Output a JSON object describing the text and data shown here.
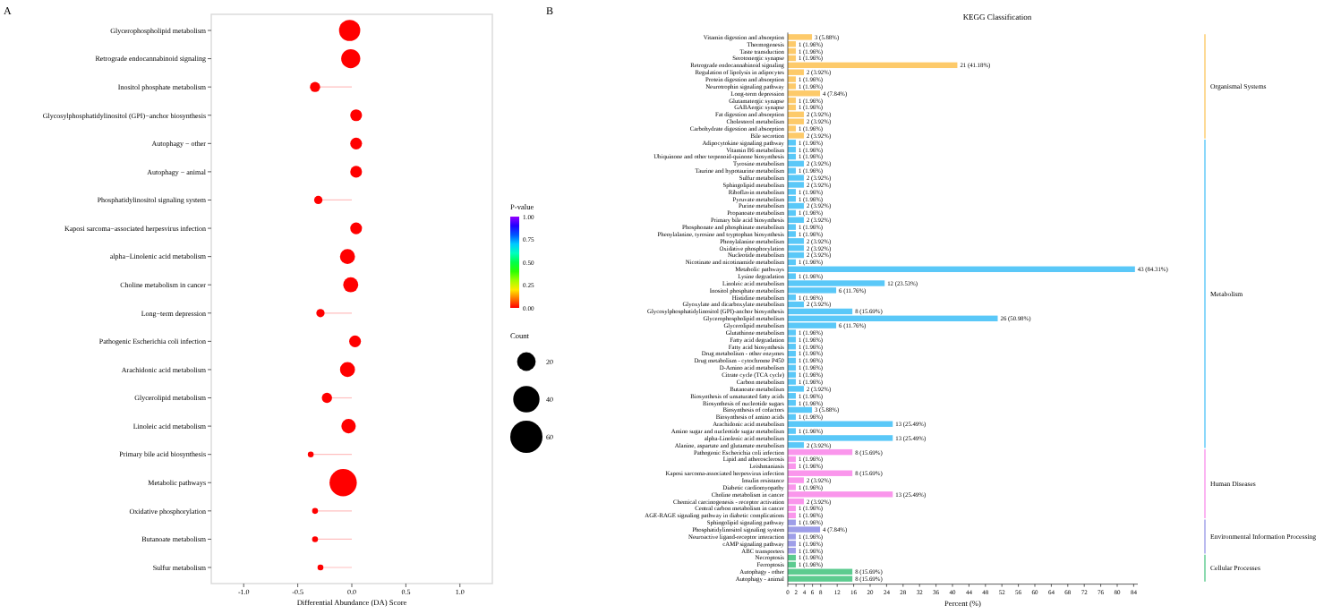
{
  "chart_data": [
    {
      "type": "bubble",
      "orientation": "horizontal",
      "xlabel": "Differential Abundance (DA) Score",
      "annotations": [
        "A"
      ],
      "legend_title": "Count",
      "clabel": "P-value",
      "categories": [
        "Glycerophospholipid metabolism",
        "Retrograde endocannabinoid signaling",
        "Inositol phosphate metabolism",
        "Glycosylphosphatidylinositol (GPI)−anchor biosynthesis",
        "Autophagy − other",
        "Autophagy − animal",
        "Phosphatidylinositol signaling system",
        "Kaposi sarcoma−associated herpesvirus infection",
        "alpha−Linolenic acid metabolism",
        "Choline metabolism in cancer",
        "Long−term depression",
        "Pathogenic Escherichia coli infection",
        "Arachidonic acid metabolism",
        "Glycerolipid metabolism",
        "Linoleic acid metabolism",
        "Primary bile acid biosynthesis",
        "Metabolic pathways",
        "Oxidative phosphorylation",
        "Butanoate metabolism",
        "Sulfur metabolism"
      ],
      "values": [
        -0.02,
        -0.01,
        -0.34,
        0.04,
        0.04,
        0.04,
        -0.31,
        0.04,
        -0.04,
        -0.01,
        -0.29,
        0.03,
        -0.04,
        -0.23,
        -0.03,
        -0.38,
        -0.08,
        -0.34,
        -0.34,
        -0.29
      ],
      "sizes": [
        26,
        21,
        6,
        8,
        8,
        8,
        4,
        8,
        13,
        13,
        4,
        8,
        13,
        6,
        12,
        2,
        43,
        2,
        2,
        2
      ],
      "size_legend": [
        20,
        40,
        60
      ],
      "cvalues": [
        0,
        0,
        0,
        0,
        0,
        0,
        0,
        0,
        0,
        0,
        0,
        0,
        0,
        0,
        0,
        0,
        0,
        0,
        0,
        0
      ],
      "clim": [
        0,
        1
      ],
      "cticks": [
        {
          "value": 0,
          "label": "0.00"
        },
        {
          "value": 0.25,
          "label": "0.25"
        },
        {
          "value": 0.5,
          "label": "0.50"
        },
        {
          "value": 0.75,
          "label": "0.75"
        },
        {
          "value": 1,
          "label": "1.00"
        }
      ],
      "xlim": [
        -1.3,
        1.3
      ],
      "xticks": [
        {
          "value": -1,
          "label": "-1.0"
        },
        {
          "value": -0.5,
          "label": "-0.5"
        },
        {
          "value": 0,
          "label": "0.0"
        },
        {
          "value": 0.5,
          "label": "0.5"
        },
        {
          "value": 1,
          "label": "1.0"
        }
      ]
    },
    {
      "type": "bar",
      "orientation": "horizontal",
      "title": "KEGG Classification",
      "xlabel": "Percent (%)",
      "annotations": [
        "B",
        "Organismal Systems",
        "Metabolism",
        "Human Diseases",
        "Environmental Information Processing",
        "Cellular Processes"
      ],
      "categories": [
        "Vitamin digestion and absorption",
        "Thermogenesis",
        "Taste transduction",
        "Serotonergic synapse",
        "Retrograde endocannabinoid signaling",
        "Regulation of lipolysis in adipocytes",
        "Protein digestion and absorption",
        "Neurotrophin signaling pathway",
        "Long-term depression",
        "Glutamatergic synapse",
        "GABAergic synapse",
        "Fat digestion and absorption",
        "Cholesterol metabolism",
        "Carbohydrate digestion and absorption",
        "Bile secretion",
        "Adipocytokine signaling pathway",
        "Vitamin B6 metabolism",
        "Ubiquinone and other terpenoid-quinone biosynthesis",
        "Tyrosine metabolism",
        "Taurine and hypotaurine metabolism",
        "Sulfur metabolism",
        "Sphingolipid metabolism",
        "Riboflavin metabolism",
        "Pyruvate metabolism",
        "Purine metabolism",
        "Propanoate metabolism",
        "Primary bile acid biosynthesis",
        "Phosphonate and phosphinate metabolism",
        "Phenylalanine, tyrosine and tryptophan biosynthesis",
        "Phenylalanine metabolism",
        "Oxidative phosphorylation",
        "Nucleotide metabolism",
        "Nicotinate and nicotinamide metabolism",
        "Metabolic pathways",
        "Lysine degradation",
        "Linoleic acid metabolism",
        "Inositol phosphate metabolism",
        "Histidine metabolism",
        "Glyoxylate and dicarboxylate metabolism",
        "Glycosylphosphatidylinositol (GPI)-anchor biosynthesis",
        "Glycerophospholipid metabolism",
        "Glycerolipid metabolism",
        "Glutathione metabolism",
        "Fatty acid degradation",
        "Fatty acid biosynthesis",
        "Drug metabolism - other enzymes",
        "Drug metabolism - cytochrome P450",
        "D-Amino acid metabolism",
        "Citrate cycle (TCA cycle)",
        "Carbon metabolism",
        "Butanoate metabolism",
        "Biosynthesis of unsaturated fatty acids",
        "Biosynthesis of nucleotide sugars",
        "Biosynthesis of cofactors",
        "Biosynthesis of amino acids",
        "Arachidonic acid metabolism",
        "Amino sugar and nucleotide sugar metabolism",
        "alpha-Linolenic acid metabolism",
        "Alanine, aspartate and glutamate metabolism",
        "Pathogenic Escherichia coli infection",
        "Lipid and atherosclerosis",
        "Leishmaniasis",
        "Kaposi sarcoma-associated herpesvirus infection",
        "Insulin resistance",
        "Diabetic cardiomyopathy",
        "Choline metabolism in cancer",
        "Chemical carcinogenesis - receptor activation",
        "Central carbon metabolism in cancer",
        "AGE-RAGE signaling pathway in diabetic complications",
        "Sphingolipid signaling pathway",
        "Phosphatidylinositol signaling system",
        "Neuroactive ligand-receptor interaction",
        "cAMP signaling pathway",
        "ABC transporters",
        "Necroptosis",
        "Ferroptosis",
        "Autophagy - other",
        "Autophagy - animal"
      ],
      "values": [
        5.88,
        1.96,
        1.96,
        1.96,
        41.18,
        3.92,
        1.96,
        1.96,
        7.84,
        1.96,
        1.96,
        3.92,
        3.92,
        1.96,
        3.92,
        1.96,
        1.96,
        1.96,
        3.92,
        1.96,
        3.92,
        3.92,
        1.96,
        1.96,
        3.92,
        1.96,
        3.92,
        1.96,
        1.96,
        3.92,
        3.92,
        3.92,
        1.96,
        84.31,
        1.96,
        23.53,
        11.76,
        1.96,
        3.92,
        15.69,
        50.98,
        11.76,
        1.96,
        1.96,
        1.96,
        1.96,
        1.96,
        1.96,
        1.96,
        1.96,
        3.92,
        1.96,
        1.96,
        5.88,
        1.96,
        25.49,
        1.96,
        25.49,
        3.92,
        15.69,
        1.96,
        1.96,
        15.69,
        3.92,
        1.96,
        25.49,
        3.92,
        1.96,
        1.96,
        1.96,
        7.84,
        1.96,
        1.96,
        1.96,
        1.96,
        1.96,
        15.69,
        15.69
      ],
      "value_labels": [
        "3 (5.88%)",
        "1 (1.96%)",
        "1 (1.96%)",
        "1 (1.96%)",
        "21 (41.18%)",
        "2 (3.92%)",
        "1 (1.96%)",
        "1 (1.96%)",
        "4 (7.84%)",
        "1 (1.96%)",
        "1 (1.96%)",
        "2 (3.92%)",
        "2 (3.92%)",
        "1 (1.96%)",
        "2 (3.92%)",
        "1 (1.96%)",
        "1 (1.96%)",
        "1 (1.96%)",
        "2 (3.92%)",
        "1 (1.96%)",
        "2 (3.92%)",
        "2 (3.92%)",
        "1 (1.96%)",
        "1 (1.96%)",
        "2 (3.92%)",
        "1 (1.96%)",
        "2 (3.92%)",
        "1 (1.96%)",
        "1 (1.96%)",
        "2 (3.92%)",
        "2 (3.92%)",
        "2 (3.92%)",
        "1 (1.96%)",
        "43 (84.31%)",
        "1 (1.96%)",
        "12 (23.53%)",
        "6 (11.76%)",
        "1 (1.96%)",
        "2 (3.92%)",
        "8 (15.69%)",
        "26 (50.98%)",
        "6 (11.76%)",
        "1 (1.96%)",
        "1 (1.96%)",
        "1 (1.96%)",
        "1 (1.96%)",
        "1 (1.96%)",
        "1 (1.96%)",
        "1 (1.96%)",
        "1 (1.96%)",
        "2 (3.92%)",
        "1 (1.96%)",
        "1 (1.96%)",
        "3 (5.88%)",
        "1 (1.96%)",
        "13 (25.49%)",
        "1 (1.96%)",
        "13 (25.49%)",
        "2 (3.92%)",
        "8 (15.69%)",
        "1 (1.96%)",
        "1 (1.96%)",
        "8 (15.69%)",
        "2 (3.92%)",
        "1 (1.96%)",
        "13 (25.49%)",
        "2 (3.92%)",
        "1 (1.96%)",
        "1 (1.96%)",
        "1 (1.96%)",
        "4 (7.84%)",
        "1 (1.96%)",
        "1 (1.96%)",
        "1 (1.96%)",
        "1 (1.96%)",
        "1 (1.96%)",
        "8 (15.69%)",
        "8 (15.69%)"
      ],
      "colors": [
        "#fdca6a",
        "#fdca6a",
        "#fdca6a",
        "#fdca6a",
        "#fdca6a",
        "#fdca6a",
        "#fdca6a",
        "#fdca6a",
        "#fdca6a",
        "#fdca6a",
        "#fdca6a",
        "#fdca6a",
        "#fdca6a",
        "#fdca6a",
        "#fdca6a",
        "#5ac8f8",
        "#5ac8f8",
        "#5ac8f8",
        "#5ac8f8",
        "#5ac8f8",
        "#5ac8f8",
        "#5ac8f8",
        "#5ac8f8",
        "#5ac8f8",
        "#5ac8f8",
        "#5ac8f8",
        "#5ac8f8",
        "#5ac8f8",
        "#5ac8f8",
        "#5ac8f8",
        "#5ac8f8",
        "#5ac8f8",
        "#5ac8f8",
        "#5ac8f8",
        "#5ac8f8",
        "#5ac8f8",
        "#5ac8f8",
        "#5ac8f8",
        "#5ac8f8",
        "#5ac8f8",
        "#5ac8f8",
        "#5ac8f8",
        "#5ac8f8",
        "#5ac8f8",
        "#5ac8f8",
        "#5ac8f8",
        "#5ac8f8",
        "#5ac8f8",
        "#5ac8f8",
        "#5ac8f8",
        "#5ac8f8",
        "#5ac8f8",
        "#5ac8f8",
        "#5ac8f8",
        "#5ac8f8",
        "#5ac8f8",
        "#5ac8f8",
        "#5ac8f8",
        "#5ac8f8",
        "#fa96ec",
        "#fa96ec",
        "#fa96ec",
        "#fa96ec",
        "#fa96ec",
        "#fa96ec",
        "#fa96ec",
        "#fa96ec",
        "#fa96ec",
        "#fa96ec",
        "#9e9ee8",
        "#9e9ee8",
        "#9e9ee8",
        "#9e9ee8",
        "#9e9ee8",
        "#5ccb8f",
        "#5ccb8f",
        "#5ccb8f",
        "#5ccb8f"
      ],
      "xlim": [
        0,
        85
      ],
      "xticks": [
        0,
        2,
        4,
        6,
        8,
        12,
        16,
        20,
        24,
        28,
        32,
        36,
        40,
        44,
        48,
        52,
        56,
        60,
        64,
        68,
        72,
        76,
        80,
        84
      ]
    }
  ]
}
